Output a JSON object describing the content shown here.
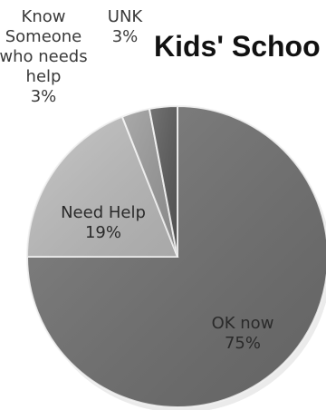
{
  "chart_data": {
    "type": "pie",
    "title": "Kids' Schoo",
    "slices": [
      {
        "label": "OK now",
        "value": 75,
        "value_label": "75%",
        "color": "#6f6f6f",
        "label_lines": [
          "OK now",
          "75%"
        ]
      },
      {
        "label": "Need Help",
        "value": 19,
        "value_label": "19%",
        "color": "#bdbdbd",
        "label_lines": [
          "Need Help",
          "19%"
        ]
      },
      {
        "label": "Know Someone who needs help",
        "value": 3,
        "value_label": "3%",
        "color": "#9a9a9a",
        "label_lines": [
          "Know",
          "Someone",
          "who needs",
          "help",
          "3%"
        ]
      },
      {
        "label": "UNK",
        "value": 3,
        "value_label": "3%",
        "color": "#5a5a5a",
        "label_lines": [
          "UNK",
          "3%"
        ]
      }
    ]
  }
}
